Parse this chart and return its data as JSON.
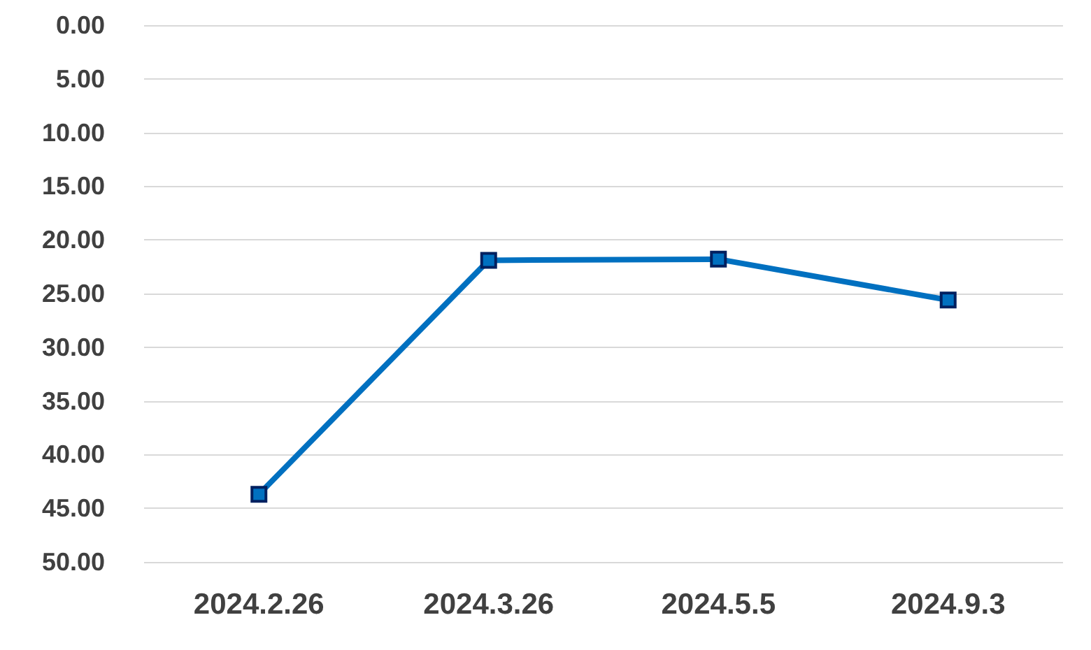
{
  "chart_data": {
    "type": "line",
    "categories": [
      "2024.2.26",
      "2024.3.26",
      "2024.5.5",
      "2024.9.3"
    ],
    "series": [
      {
        "color": "#0070c0",
        "values": [
          43.7,
          21.9,
          21.8,
          25.6
        ]
      }
    ],
    "ylim": [
      50,
      0
    ],
    "yticks": [
      {
        "value": 0,
        "label": "0.00"
      },
      {
        "value": 5,
        "label": "5.00"
      },
      {
        "value": 10,
        "label": "10.00"
      },
      {
        "value": 15,
        "label": "15.00"
      },
      {
        "value": 20,
        "label": "20.00"
      },
      {
        "value": 25,
        "label": "25.00"
      },
      {
        "value": 30,
        "label": "30.00"
      },
      {
        "value": 35,
        "label": "35.00"
      },
      {
        "value": 40,
        "label": "40.00"
      },
      {
        "value": 45,
        "label": "45.00"
      },
      {
        "value": 50,
        "label": "50.00"
      }
    ],
    "grid": "y",
    "marker": "square",
    "line_style": "solid"
  }
}
